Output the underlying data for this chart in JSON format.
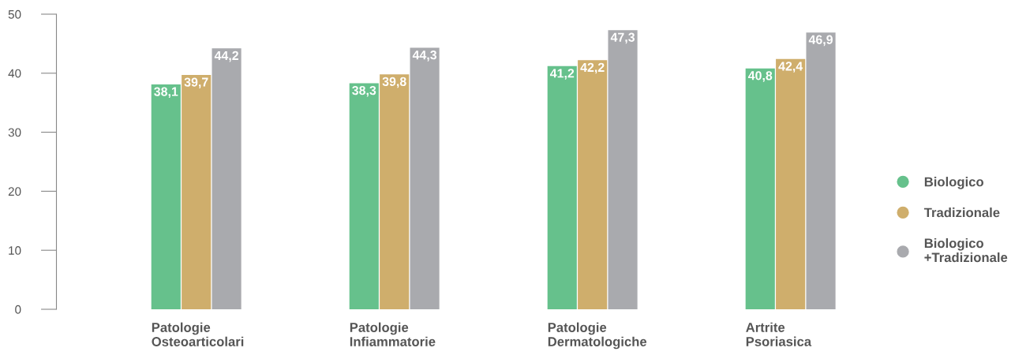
{
  "chart_data": {
    "type": "bar",
    "categories": [
      "Patologie\nOsteoarticolari",
      "Patologie\nInfiammatorie",
      "Patologie\nDermatologiche",
      "Artrite\nPsoriasica"
    ],
    "series": [
      {
        "name": "Biologico",
        "color": "#66c18c",
        "values": [
          38.1,
          38.3,
          41.2,
          40.8
        ],
        "value_labels": [
          "38,1",
          "38,3",
          "41,2",
          "40,8"
        ]
      },
      {
        "name": "Tradizionale",
        "color": "#cfae6c",
        "values": [
          39.7,
          39.8,
          42.2,
          42.4
        ],
        "value_labels": [
          "39,7",
          "39,8",
          "42,2",
          "42,4"
        ]
      },
      {
        "name": "Biologico\n+Tradizionale",
        "color": "#a9aaae",
        "values": [
          44.2,
          44.3,
          47.3,
          46.9
        ],
        "value_labels": [
          "44,2",
          "44,3",
          "47,3",
          "46,9"
        ]
      }
    ],
    "ylim": [
      0,
      50
    ],
    "yticks": [
      0,
      10,
      20,
      30,
      40,
      50
    ],
    "grid": false,
    "legend": "right",
    "marker": "circle"
  }
}
